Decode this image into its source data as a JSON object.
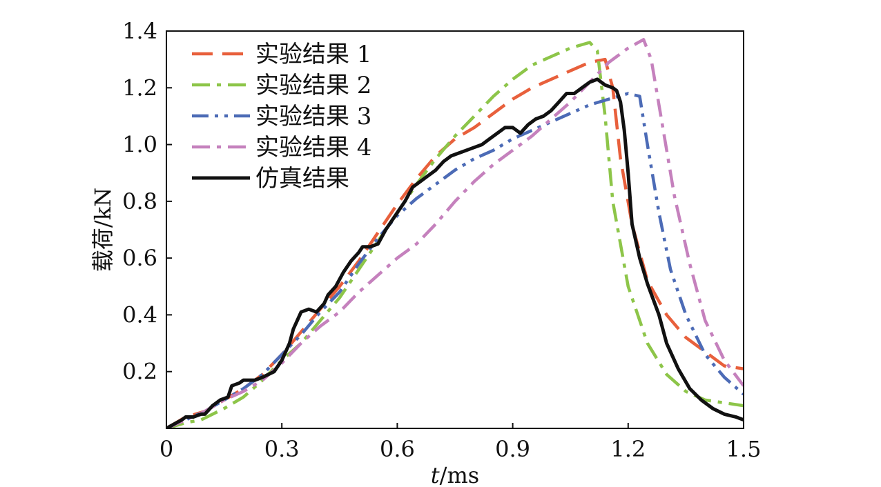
{
  "chart_data": {
    "type": "line",
    "xlabel": {
      "italic": "t",
      "rest": "/ms"
    },
    "ylabel": "载荷/kN",
    "xlim": [
      0,
      1.5
    ],
    "ylim": [
      0,
      1.4
    ],
    "xticks": [
      0,
      0.3,
      0.6,
      0.9,
      1.2,
      1.5
    ],
    "xtick_labels": [
      "0",
      "0.3",
      "0.6",
      "0.9",
      "1.2",
      "1.5"
    ],
    "yticks": [
      0.2,
      0.4,
      0.6,
      0.8,
      1.0,
      1.2,
      1.4
    ],
    "ytick_labels": [
      "0.2",
      "0.4",
      "0.6",
      "0.8",
      "1.0",
      "1.2",
      "1.4"
    ],
    "legend_position": "top-left",
    "grid": false,
    "series": [
      {
        "name": "实验结果 1",
        "color": "#E8603C",
        "dash": "dashed",
        "points": [
          [
            0,
            0
          ],
          [
            0.05,
            0.04
          ],
          [
            0.1,
            0.06
          ],
          [
            0.15,
            0.1
          ],
          [
            0.2,
            0.14
          ],
          [
            0.25,
            0.19
          ],
          [
            0.3,
            0.26
          ],
          [
            0.35,
            0.34
          ],
          [
            0.4,
            0.42
          ],
          [
            0.45,
            0.5
          ],
          [
            0.5,
            0.59
          ],
          [
            0.55,
            0.69
          ],
          [
            0.6,
            0.79
          ],
          [
            0.65,
            0.88
          ],
          [
            0.7,
            0.96
          ],
          [
            0.75,
            1.02
          ],
          [
            0.8,
            1.06
          ],
          [
            0.85,
            1.11
          ],
          [
            0.9,
            1.16
          ],
          [
            0.95,
            1.2
          ],
          [
            1.0,
            1.23
          ],
          [
            1.05,
            1.26
          ],
          [
            1.1,
            1.29
          ],
          [
            1.14,
            1.3
          ],
          [
            1.16,
            1.2
          ],
          [
            1.18,
            0.95
          ],
          [
            1.21,
            0.72
          ],
          [
            1.25,
            0.52
          ],
          [
            1.3,
            0.4
          ],
          [
            1.35,
            0.32
          ],
          [
            1.4,
            0.27
          ],
          [
            1.45,
            0.22
          ],
          [
            1.5,
            0.21
          ]
        ]
      },
      {
        "name": "实验结果 2",
        "color": "#8DC549",
        "dash": "dashdot",
        "points": [
          [
            0,
            0
          ],
          [
            0.05,
            0.02
          ],
          [
            0.09,
            0.03
          ],
          [
            0.15,
            0.07
          ],
          [
            0.2,
            0.11
          ],
          [
            0.25,
            0.17
          ],
          [
            0.3,
            0.24
          ],
          [
            0.35,
            0.3
          ],
          [
            0.4,
            0.38
          ],
          [
            0.45,
            0.46
          ],
          [
            0.5,
            0.56
          ],
          [
            0.55,
            0.66
          ],
          [
            0.6,
            0.76
          ],
          [
            0.65,
            0.86
          ],
          [
            0.7,
            0.95
          ],
          [
            0.75,
            1.03
          ],
          [
            0.8,
            1.1
          ],
          [
            0.85,
            1.17
          ],
          [
            0.9,
            1.23
          ],
          [
            0.95,
            1.28
          ],
          [
            1.0,
            1.31
          ],
          [
            1.05,
            1.34
          ],
          [
            1.1,
            1.36
          ],
          [
            1.12,
            1.33
          ],
          [
            1.14,
            1.1
          ],
          [
            1.16,
            0.8
          ],
          [
            1.2,
            0.5
          ],
          [
            1.25,
            0.3
          ],
          [
            1.3,
            0.19
          ],
          [
            1.35,
            0.13
          ],
          [
            1.4,
            0.1
          ],
          [
            1.45,
            0.09
          ],
          [
            1.5,
            0.08
          ]
        ]
      },
      {
        "name": "实验结果 3",
        "color": "#4C6BB6",
        "dash": "dashdotdot",
        "points": [
          [
            0,
            0
          ],
          [
            0.05,
            0.03
          ],
          [
            0.1,
            0.06
          ],
          [
            0.15,
            0.1
          ],
          [
            0.2,
            0.14
          ],
          [
            0.25,
            0.19
          ],
          [
            0.3,
            0.26
          ],
          [
            0.35,
            0.33
          ],
          [
            0.4,
            0.41
          ],
          [
            0.45,
            0.48
          ],
          [
            0.5,
            0.58
          ],
          [
            0.55,
            0.67
          ],
          [
            0.6,
            0.75
          ],
          [
            0.65,
            0.81
          ],
          [
            0.7,
            0.86
          ],
          [
            0.75,
            0.91
          ],
          [
            0.8,
            0.95
          ],
          [
            0.85,
            0.98
          ],
          [
            0.9,
            1.02
          ],
          [
            0.95,
            1.05
          ],
          [
            1.0,
            1.08
          ],
          [
            1.05,
            1.11
          ],
          [
            1.1,
            1.14
          ],
          [
            1.15,
            1.16
          ],
          [
            1.2,
            1.18
          ],
          [
            1.23,
            1.17
          ],
          [
            1.25,
            1.0
          ],
          [
            1.28,
            0.76
          ],
          [
            1.31,
            0.56
          ],
          [
            1.35,
            0.4
          ],
          [
            1.4,
            0.26
          ],
          [
            1.45,
            0.18
          ],
          [
            1.5,
            0.12
          ]
        ]
      },
      {
        "name": "实验结果 4",
        "color": "#C581BD",
        "dash": "dashdot",
        "points": [
          [
            0,
            0
          ],
          [
            0.05,
            0.03
          ],
          [
            0.1,
            0.06
          ],
          [
            0.15,
            0.1
          ],
          [
            0.2,
            0.13
          ],
          [
            0.25,
            0.17
          ],
          [
            0.3,
            0.23
          ],
          [
            0.35,
            0.3
          ],
          [
            0.4,
            0.36
          ],
          [
            0.45,
            0.41
          ],
          [
            0.5,
            0.48
          ],
          [
            0.55,
            0.54
          ],
          [
            0.6,
            0.6
          ],
          [
            0.65,
            0.65
          ],
          [
            0.7,
            0.72
          ],
          [
            0.75,
            0.8
          ],
          [
            0.8,
            0.87
          ],
          [
            0.85,
            0.93
          ],
          [
            0.9,
            0.98
          ],
          [
            0.95,
            1.03
          ],
          [
            1.0,
            1.09
          ],
          [
            1.05,
            1.15
          ],
          [
            1.1,
            1.22
          ],
          [
            1.15,
            1.29
          ],
          [
            1.2,
            1.34
          ],
          [
            1.24,
            1.37
          ],
          [
            1.26,
            1.3
          ],
          [
            1.29,
            1.06
          ],
          [
            1.32,
            0.82
          ],
          [
            1.36,
            0.58
          ],
          [
            1.4,
            0.38
          ],
          [
            1.45,
            0.24
          ],
          [
            1.5,
            0.15
          ]
        ]
      },
      {
        "name": "仿真结果",
        "color": "#111111",
        "dash": "solid",
        "points": [
          [
            0,
            0
          ],
          [
            0.04,
            0.03
          ],
          [
            0.05,
            0.04
          ],
          [
            0.07,
            0.04
          ],
          [
            0.09,
            0.05
          ],
          [
            0.1,
            0.05
          ],
          [
            0.12,
            0.08
          ],
          [
            0.14,
            0.1
          ],
          [
            0.16,
            0.11
          ],
          [
            0.17,
            0.15
          ],
          [
            0.19,
            0.16
          ],
          [
            0.2,
            0.17
          ],
          [
            0.23,
            0.17
          ],
          [
            0.25,
            0.18
          ],
          [
            0.28,
            0.2
          ],
          [
            0.3,
            0.24
          ],
          [
            0.32,
            0.3
          ],
          [
            0.33,
            0.35
          ],
          [
            0.34,
            0.38
          ],
          [
            0.35,
            0.41
          ],
          [
            0.37,
            0.42
          ],
          [
            0.39,
            0.41
          ],
          [
            0.41,
            0.44
          ],
          [
            0.42,
            0.47
          ],
          [
            0.44,
            0.5
          ],
          [
            0.46,
            0.55
          ],
          [
            0.48,
            0.59
          ],
          [
            0.5,
            0.62
          ],
          [
            0.51,
            0.64
          ],
          [
            0.53,
            0.64
          ],
          [
            0.55,
            0.65
          ],
          [
            0.57,
            0.7
          ],
          [
            0.6,
            0.76
          ],
          [
            0.62,
            0.8
          ],
          [
            0.64,
            0.85
          ],
          [
            0.66,
            0.87
          ],
          [
            0.68,
            0.89
          ],
          [
            0.7,
            0.91
          ],
          [
            0.72,
            0.94
          ],
          [
            0.74,
            0.96
          ],
          [
            0.76,
            0.97
          ],
          [
            0.78,
            0.98
          ],
          [
            0.8,
            0.99
          ],
          [
            0.82,
            1.0
          ],
          [
            0.84,
            1.02
          ],
          [
            0.86,
            1.04
          ],
          [
            0.88,
            1.06
          ],
          [
            0.9,
            1.06
          ],
          [
            0.92,
            1.04
          ],
          [
            0.94,
            1.07
          ],
          [
            0.96,
            1.09
          ],
          [
            0.98,
            1.1
          ],
          [
            1.0,
            1.12
          ],
          [
            1.02,
            1.15
          ],
          [
            1.04,
            1.18
          ],
          [
            1.06,
            1.18
          ],
          [
            1.08,
            1.2
          ],
          [
            1.1,
            1.22
          ],
          [
            1.12,
            1.23
          ],
          [
            1.14,
            1.21
          ],
          [
            1.16,
            1.2
          ],
          [
            1.17,
            1.19
          ],
          [
            1.18,
            1.15
          ],
          [
            1.19,
            1.05
          ],
          [
            1.2,
            0.9
          ],
          [
            1.21,
            0.72
          ],
          [
            1.23,
            0.6
          ],
          [
            1.25,
            0.51
          ],
          [
            1.28,
            0.4
          ],
          [
            1.3,
            0.3
          ],
          [
            1.33,
            0.21
          ],
          [
            1.36,
            0.14
          ],
          [
            1.39,
            0.1
          ],
          [
            1.42,
            0.07
          ],
          [
            1.45,
            0.05
          ],
          [
            1.48,
            0.04
          ],
          [
            1.5,
            0.03
          ]
        ]
      }
    ]
  }
}
